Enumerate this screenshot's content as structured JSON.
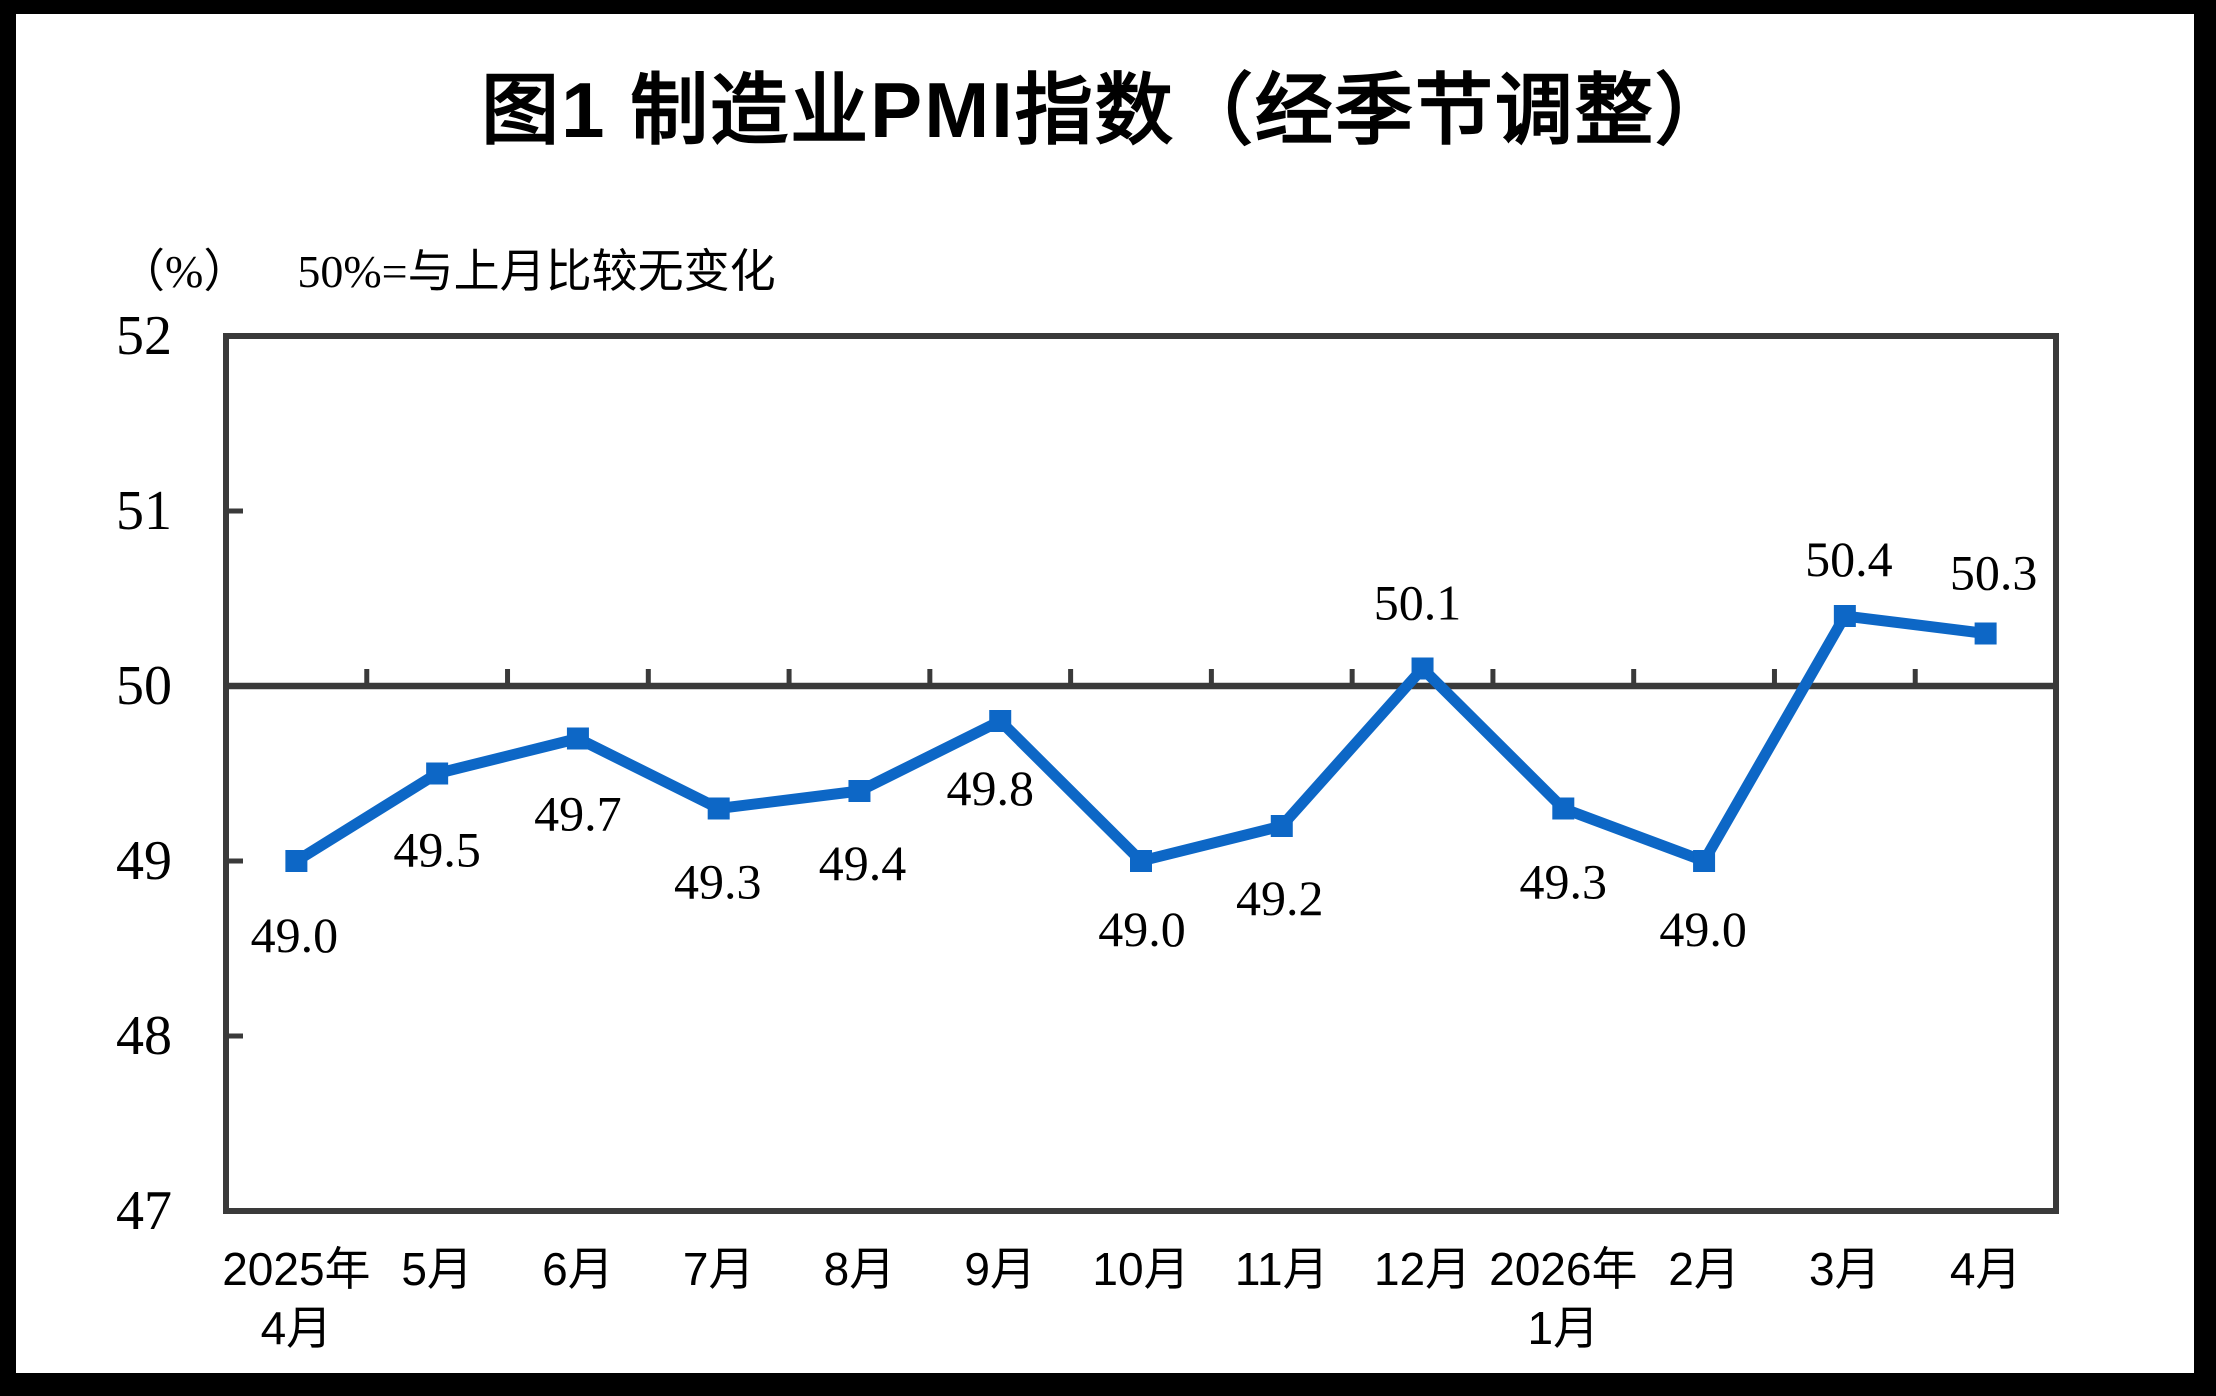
{
  "header": {
    "title": "图1 制造业PMI指数（经季节调整）"
  },
  "subtitle": {
    "unit_label": "（%）",
    "note": "50%=与上月比较无变化"
  },
  "chart_data": {
    "type": "line",
    "title": "图1 制造业PMI指数（经季节调整）",
    "unit": "%",
    "series_name": "制造业PMI指数（经季节调整）",
    "categories": [
      [
        "2025年",
        "4月"
      ],
      [
        "5月"
      ],
      [
        "6月"
      ],
      [
        "7月"
      ],
      [
        "8月"
      ],
      [
        "9月"
      ],
      [
        "10月"
      ],
      [
        "11月"
      ],
      [
        "12月"
      ],
      [
        "2026年",
        "1月"
      ],
      [
        "2月"
      ],
      [
        "3月"
      ],
      [
        "4月"
      ]
    ],
    "values": [
      49.0,
      49.5,
      49.7,
      49.3,
      49.4,
      49.8,
      49.0,
      49.2,
      50.1,
      49.3,
      49.0,
      50.4,
      50.3
    ],
    "value_labels": [
      "49.0",
      "49.5",
      "49.7",
      "49.3",
      "49.4",
      "49.8",
      "49.0",
      "49.2",
      "50.1",
      "49.3",
      "49.0",
      "50.4",
      "50.3"
    ],
    "label_position": [
      "below",
      "below",
      "below",
      "below",
      "below",
      "below",
      "below",
      "below",
      "above",
      "below",
      "below",
      "above",
      "above"
    ],
    "ylim": [
      47,
      52
    ],
    "yticks": [
      52,
      51,
      50,
      49,
      48,
      47
    ],
    "reference_line": 50,
    "grid": false,
    "legend_position": "none",
    "marker": "square",
    "line_color": "#0D67C6",
    "axis_color": "#3A3A3A",
    "text_color": "#000000"
  }
}
